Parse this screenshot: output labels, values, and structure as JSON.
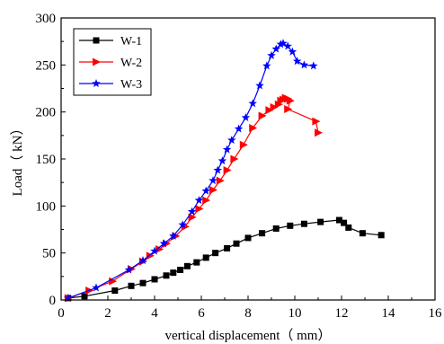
{
  "chart_data": {
    "type": "line",
    "title": "",
    "xlabel": "vertical displacement（ mm）",
    "ylabel": "Load（ kN）",
    "xlim": [
      0,
      16
    ],
    "ylim": [
      0,
      300
    ],
    "xticks": [
      0,
      2,
      4,
      6,
      8,
      10,
      12,
      14,
      16
    ],
    "yticks": [
      0,
      50,
      100,
      150,
      200,
      250,
      300
    ],
    "grid": false,
    "legend_position": "top-left",
    "series": [
      {
        "name": "W-1",
        "color": "#000000",
        "marker": "square",
        "points": [
          [
            0.3,
            2
          ],
          [
            1.0,
            4
          ],
          [
            2.3,
            10
          ],
          [
            3.0,
            15
          ],
          [
            3.5,
            18
          ],
          [
            4.0,
            22
          ],
          [
            4.5,
            26
          ],
          [
            4.8,
            29
          ],
          [
            5.1,
            32
          ],
          [
            5.4,
            36
          ],
          [
            5.8,
            40
          ],
          [
            6.2,
            45
          ],
          [
            6.6,
            50
          ],
          [
            7.1,
            55
          ],
          [
            7.5,
            60
          ],
          [
            8.0,
            66
          ],
          [
            8.6,
            71
          ],
          [
            9.2,
            76
          ],
          [
            9.8,
            79
          ],
          [
            10.4,
            81
          ],
          [
            11.1,
            83
          ],
          [
            11.9,
            85
          ],
          [
            12.1,
            82
          ],
          [
            12.3,
            77
          ],
          [
            12.9,
            71
          ],
          [
            13.7,
            69
          ]
        ]
      },
      {
        "name": "W-2",
        "color": "#ff0000",
        "marker": "triangle-right",
        "points": [
          [
            0.3,
            2
          ],
          [
            1.2,
            10
          ],
          [
            2.2,
            20
          ],
          [
            3.0,
            33
          ],
          [
            3.5,
            41
          ],
          [
            3.8,
            47
          ],
          [
            4.2,
            54
          ],
          [
            4.5,
            60
          ],
          [
            4.9,
            68
          ],
          [
            5.3,
            78
          ],
          [
            5.6,
            88
          ],
          [
            5.9,
            97
          ],
          [
            6.2,
            106
          ],
          [
            6.5,
            117
          ],
          [
            6.8,
            127
          ],
          [
            7.1,
            138
          ],
          [
            7.4,
            150
          ],
          [
            7.8,
            165
          ],
          [
            8.2,
            183
          ],
          [
            8.6,
            196
          ],
          [
            8.9,
            202
          ],
          [
            9.1,
            205
          ],
          [
            9.3,
            208
          ],
          [
            9.4,
            212
          ],
          [
            9.5,
            213
          ],
          [
            9.6,
            215
          ],
          [
            9.7,
            214
          ],
          [
            9.8,
            212
          ],
          [
            9.7,
            203
          ],
          [
            10.9,
            190
          ],
          [
            11.0,
            178
          ]
        ]
      },
      {
        "name": "W-3",
        "color": "#0000ff",
        "marker": "star",
        "points": [
          [
            0.3,
            2
          ],
          [
            1.5,
            13
          ],
          [
            2.9,
            32
          ],
          [
            3.5,
            42
          ],
          [
            4.0,
            52
          ],
          [
            4.4,
            60
          ],
          [
            4.8,
            68
          ],
          [
            5.2,
            80
          ],
          [
            5.6,
            94
          ],
          [
            5.9,
            106
          ],
          [
            6.2,
            116
          ],
          [
            6.5,
            127
          ],
          [
            6.7,
            138
          ],
          [
            6.9,
            148
          ],
          [
            7.1,
            160
          ],
          [
            7.3,
            170
          ],
          [
            7.6,
            182
          ],
          [
            7.9,
            194
          ],
          [
            8.2,
            209
          ],
          [
            8.5,
            228
          ],
          [
            8.8,
            249
          ],
          [
            9.0,
            260
          ],
          [
            9.2,
            267
          ],
          [
            9.4,
            272
          ],
          [
            9.5,
            273
          ],
          [
            9.7,
            270
          ],
          [
            9.9,
            264
          ],
          [
            10.1,
            254
          ],
          [
            10.4,
            250
          ],
          [
            10.8,
            249
          ]
        ]
      }
    ]
  }
}
